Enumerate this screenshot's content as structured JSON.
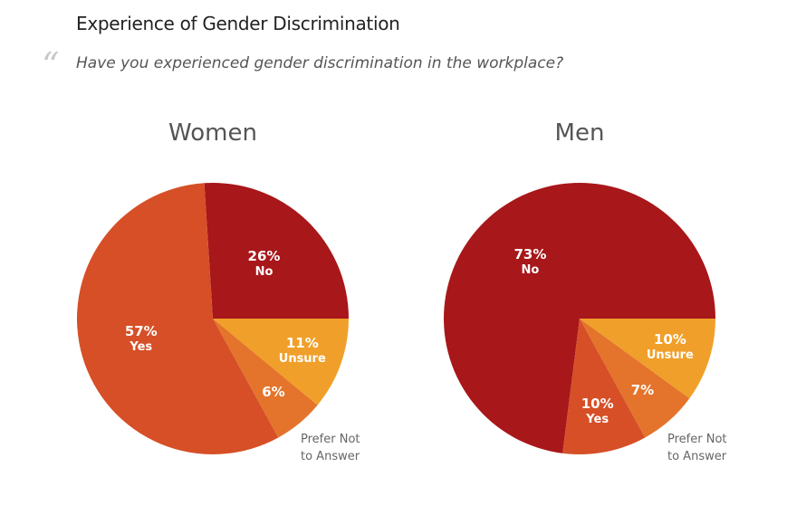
{
  "header": {
    "title": "Experience of Gender Discrimination",
    "quote_mark": "“",
    "question": "Have you experienced gender discrimination in the workplace?"
  },
  "chart_data": [
    {
      "type": "pie",
      "title": "Women",
      "categories": [
        "No",
        "Unsure",
        "Prefer Not to Answer",
        "Yes"
      ],
      "values": [
        26,
        11,
        6,
        57
      ],
      "value_labels": [
        "26%",
        "11%",
        "6%",
        "57%"
      ],
      "colors": [
        "#a8171a",
        "#f0a02a",
        "#e4742b",
        "#d64f27"
      ]
    },
    {
      "type": "pie",
      "title": "Men",
      "categories": [
        "No",
        "Unsure",
        "Prefer Not to Answer",
        "Yes"
      ],
      "values": [
        73,
        10,
        7,
        10
      ],
      "value_labels": [
        "73%",
        "10%",
        "7%",
        "10%"
      ],
      "colors": [
        "#a8171a",
        "#f0a02a",
        "#e4742b",
        "#d64f27"
      ]
    }
  ]
}
